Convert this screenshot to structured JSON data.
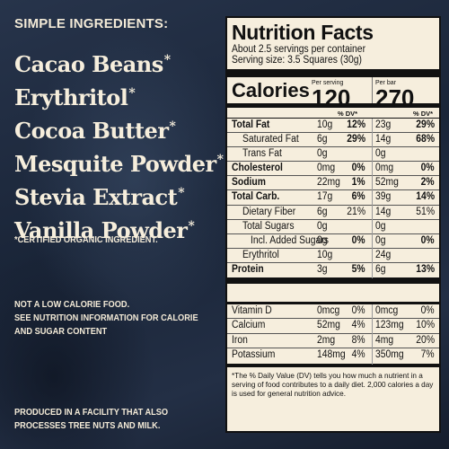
{
  "left": {
    "heading": "SIMPLE INGREDIENTS:",
    "ingredients": [
      "Cacao Beans",
      "Erythritol",
      "Cocoa Butter",
      "Mesquite Powder",
      "Stevia Extract",
      "Vanilla Powder"
    ],
    "asterisk": "*",
    "organic_note": "*CERTIFIED ORGANIC INGREDIENT.",
    "calorie_note_1": "NOT A LOW CALORIE FOOD.",
    "calorie_note_2": "SEE NUTRITION INFORMATION FOR CALORIE",
    "calorie_note_3": "AND SUGAR CONTENT",
    "facility_note_1": "PRODUCED IN A FACILITY THAT ALSO",
    "facility_note_2": "PROCESSES TREE NUTS AND MILK."
  },
  "panel": {
    "title": "Nutrition Facts",
    "servings_per_container": "About 2.5 servings per container",
    "serving_size": "Serving size: 3.5 Squares       (30g)",
    "calories_label": "Calories",
    "per_serving_label": "Per serving",
    "per_bar_label": "Per bar",
    "calories_serving": "120",
    "calories_bar": "270",
    "dv_label_a": "% DV*",
    "dv_label_b": "% DV*",
    "rows": [
      {
        "label": "Total Fat",
        "v1": "10g",
        "p1": "12%",
        "v2": "23g",
        "p2": "29%"
      },
      {
        "label": "Saturated Fat",
        "v1": "6g",
        "p1": "29%",
        "v2": "14g",
        "p2": "68%"
      },
      {
        "label": "Trans Fat",
        "v1": "0g",
        "p1": "",
        "v2": "0g",
        "p2": ""
      },
      {
        "label": "Cholesterol",
        "v1": "0mg",
        "p1": "0%",
        "v2": "0mg",
        "p2": "0%"
      },
      {
        "label": "Sodium",
        "v1": "22mg",
        "p1": "1%",
        "v2": "52mg",
        "p2": "2%"
      },
      {
        "label": "Total Carb.",
        "v1": "17g",
        "p1": "6%",
        "v2": "39g",
        "p2": "14%"
      },
      {
        "label": "Dietary Fiber",
        "v1": "6g",
        "p1": "21%",
        "v2": "14g",
        "p2": "51%"
      },
      {
        "label": "Total Sugars",
        "v1": "0g",
        "p1": "",
        "v2": "0g",
        "p2": ""
      },
      {
        "label": "Incl. Added Sugars",
        "v1": "0g",
        "p1": "0%",
        "v2": "0g",
        "p2": "0%"
      },
      {
        "label": "Erythritol",
        "v1": "10g",
        "p1": "",
        "v2": "24g",
        "p2": ""
      },
      {
        "label": "Protein",
        "v1": "3g",
        "p1": "5%",
        "v2": "6g",
        "p2": "13%"
      }
    ],
    "vitamins": [
      {
        "label": "Vitamin D",
        "v1": "0mcg",
        "p1": "0%",
        "v2": "0mcg",
        "p2": "0%"
      },
      {
        "label": "Calcium",
        "v1": "52mg",
        "p1": "4%",
        "v2": "123mg",
        "p2": "10%"
      },
      {
        "label": "Iron",
        "v1": "2mg",
        "p1": "8%",
        "v2": "4mg",
        "p2": "20%"
      },
      {
        "label": "Potassium",
        "v1": "148mg",
        "p1": "4%",
        "v2": "350mg",
        "p2": "7%"
      }
    ],
    "footnote": "*The % Daily Value (DV) tells you how much a nutrient in a serving of food contributes to a daily diet. 2,000 calories a day is used for general nutrition advice."
  }
}
